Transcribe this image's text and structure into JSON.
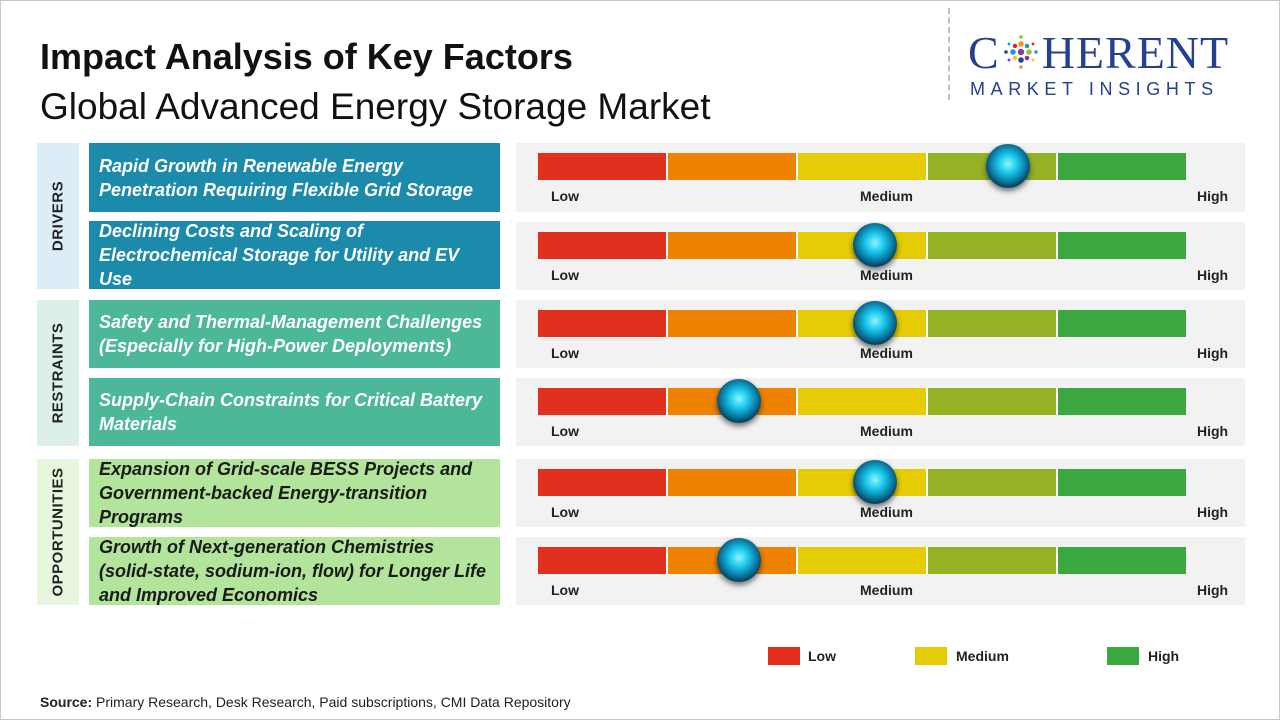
{
  "title": "Impact Analysis of Key Factors",
  "subtitle": "Global Advanced Energy Storage Market",
  "logo": {
    "word_prefix": "C",
    "word_suffix": "HERENT",
    "tagline": "MARKET INSIGHTS",
    "color": "#25408f"
  },
  "colors": {
    "drivers_label_bg": "#dcedf7",
    "drivers_factor_bg": "#1b8aab",
    "restraints_label_bg": "#dcefea",
    "restraints_factor_bg": "#4cb899",
    "opportunities_label_bg": "#e9f6de",
    "opportunities_factor_bg": "#b2e49b",
    "scale": [
      "#e1301d",
      "#ef8200",
      "#e5cc06",
      "#95b224",
      "#3aa83f"
    ]
  },
  "scale_labels": {
    "low": "Low",
    "medium": "Medium",
    "high": "High"
  },
  "categories": [
    {
      "label": "DRIVERS",
      "factors": [
        {
          "text": "Rapid Growth in Renewable Energy Penetration Requiring Flexible Grid Storage",
          "impact": 0.725
        },
        {
          "text": "Declining Costs and Scaling of Electrochemical Storage for Utility and EV Use",
          "impact": 0.52
        }
      ]
    },
    {
      "label": "RESTRAINTS",
      "factors": [
        {
          "text": "Safety and Thermal-Management Challenges (Especially for High-Power Deployments)",
          "impact": 0.52
        },
        {
          "text": "Supply-Chain Constraints for Critical Battery Materials",
          "impact": 0.31
        }
      ]
    },
    {
      "label": "OPPORTUNITIES",
      "factors": [
        {
          "text": "Expansion of Grid-scale BESS Projects and Government-backed Energy-transition Programs",
          "impact": 0.52
        },
        {
          "text": "Growth of Next-generation Chemistries (solid-state, sodium-ion, flow) for Longer Life and Improved Economics",
          "impact": 0.31
        }
      ]
    }
  ],
  "legend": [
    {
      "label": "Low",
      "color": "#e1301d"
    },
    {
      "label": "Medium",
      "color": "#e5cc06"
    },
    {
      "label": "High",
      "color": "#3aa83f"
    }
  ],
  "source": {
    "label": "Source:",
    "text": " Primary Research, Desk Research, Paid subscriptions, CMI Data Repository"
  }
}
